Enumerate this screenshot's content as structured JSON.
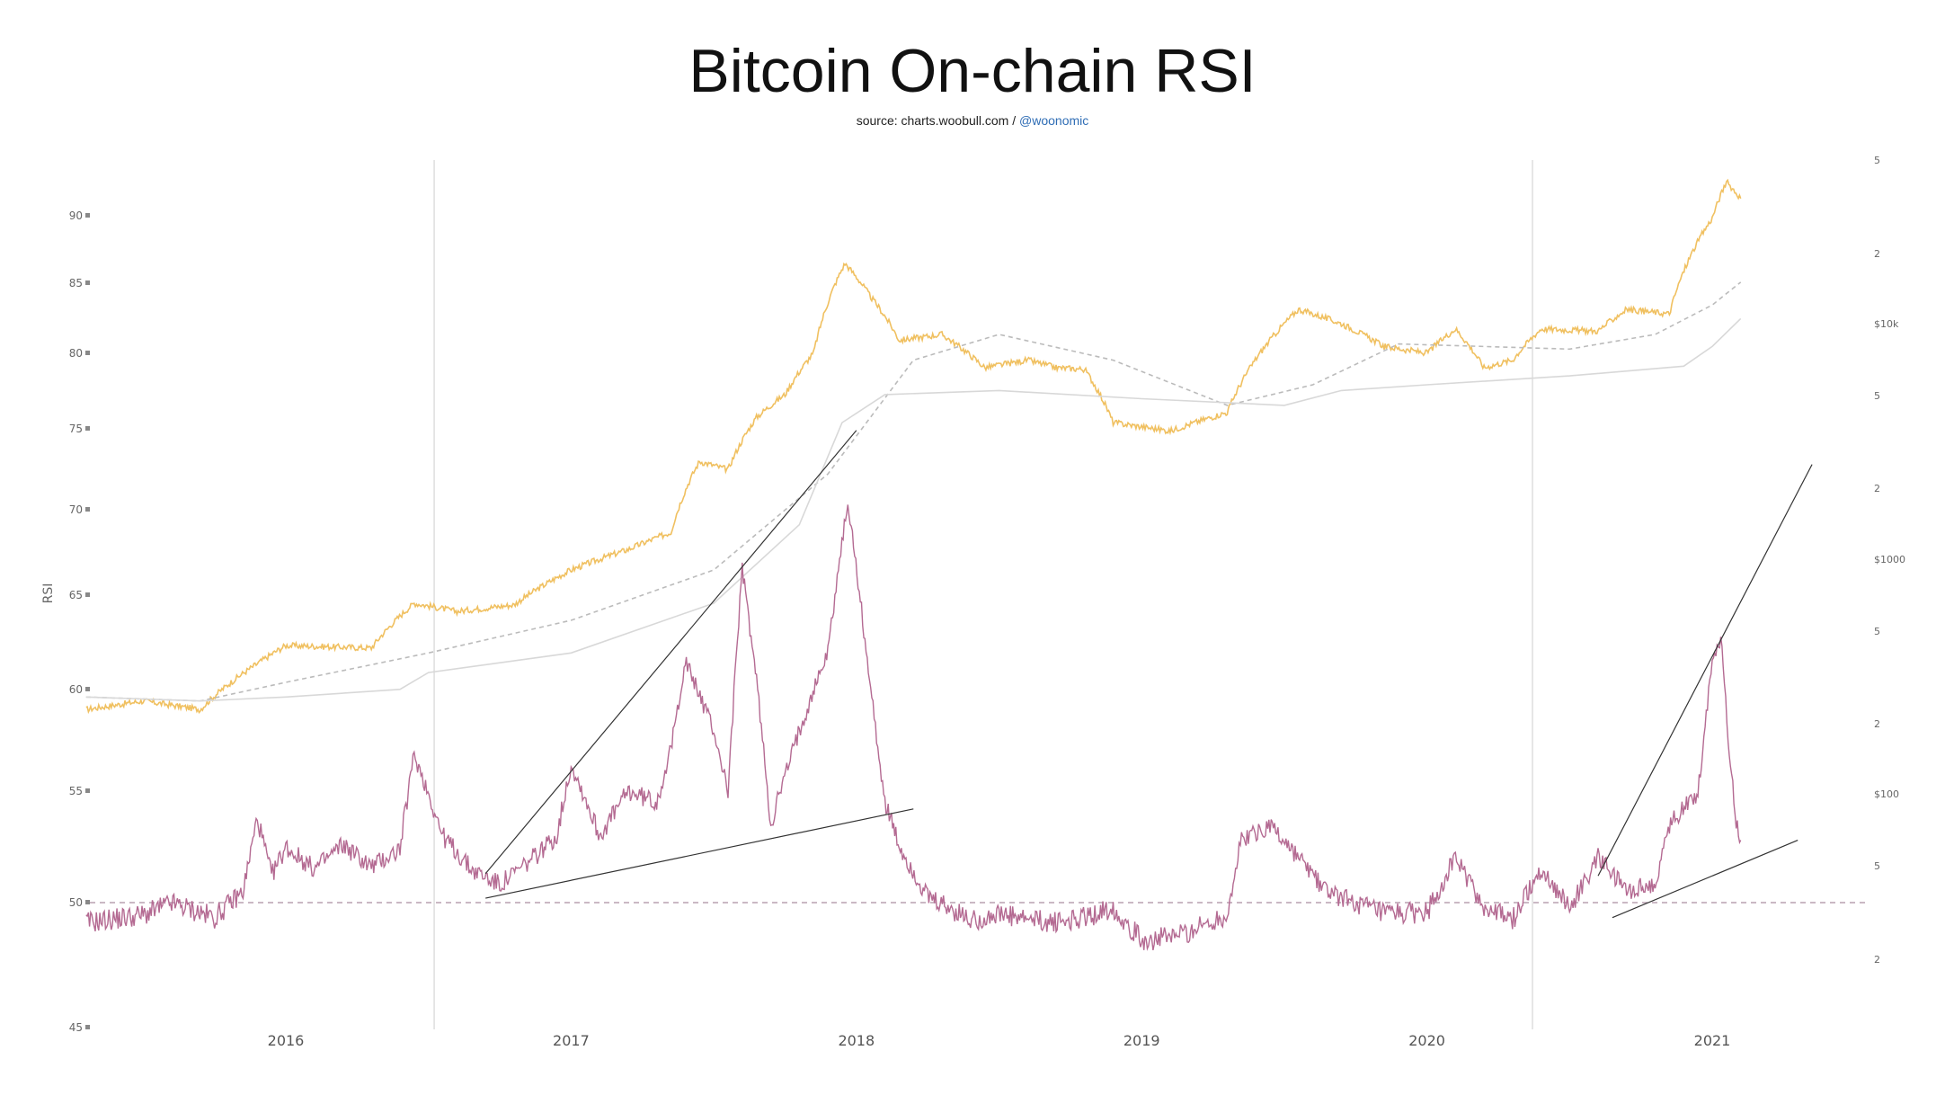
{
  "chart_data": {
    "type": "line",
    "title": "Bitcoin On-chain RSI",
    "subtitle": {
      "prefix": "source: charts.woobull.com / ",
      "handle": "@woonomic"
    },
    "ylabel": "RSI",
    "ylim": [
      45,
      92
    ],
    "left_ticks": [
      {
        "value": 90,
        "label": "90"
      },
      {
        "value": 85,
        "label": "85"
      },
      {
        "value": 80,
        "label": "80"
      },
      {
        "value": 75,
        "label": "75"
      },
      {
        "value": 70,
        "label": "70"
      },
      {
        "value": 65,
        "label": "65"
      },
      {
        "value": 60,
        "label": "60"
      },
      {
        "value": 55,
        "label": "55"
      },
      {
        "value": 50,
        "label": "50"
      },
      {
        "value": 45,
        "label": "45"
      }
    ],
    "x_ticks": [
      "2016",
      "2017",
      "2018",
      "2019",
      "2020",
      "2021"
    ],
    "right_scale": "log",
    "right_ticks": [
      "5",
      "2",
      "$10k",
      "5",
      "2",
      "$1000",
      "5",
      "2",
      "$100",
      "5",
      "2"
    ],
    "reference_line": {
      "value": 50,
      "style": "dashed"
    },
    "halving_lines": [
      "2016-07",
      "2020-05"
    ],
    "series": [
      {
        "key": "price",
        "color": "#f0c060",
        "points": [
          [
            2015.3,
            230
          ],
          [
            2015.5,
            250
          ],
          [
            2015.7,
            230
          ],
          [
            2015.9,
            360
          ],
          [
            2016.0,
            430
          ],
          [
            2016.3,
            420
          ],
          [
            2016.45,
            650
          ],
          [
            2016.6,
            600
          ],
          [
            2016.8,
            640
          ],
          [
            2017.0,
            900
          ],
          [
            2017.2,
            1100
          ],
          [
            2017.35,
            1300
          ],
          [
            2017.45,
            2600
          ],
          [
            2017.55,
            2400
          ],
          [
            2017.65,
            4000
          ],
          [
            2017.75,
            5000
          ],
          [
            2017.85,
            7500
          ],
          [
            2017.96,
            18000
          ],
          [
            2018.05,
            13000
          ],
          [
            2018.15,
            8500
          ],
          [
            2018.3,
            9000
          ],
          [
            2018.45,
            6500
          ],
          [
            2018.6,
            7000
          ],
          [
            2018.7,
            6500
          ],
          [
            2018.8,
            6400
          ],
          [
            2018.9,
            3800
          ],
          [
            2019.1,
            3500
          ],
          [
            2019.3,
            4200
          ],
          [
            2019.45,
            8500
          ],
          [
            2019.55,
            11500
          ],
          [
            2019.7,
            10000
          ],
          [
            2019.85,
            8000
          ],
          [
            2020.0,
            7500
          ],
          [
            2020.1,
            9500
          ],
          [
            2020.2,
            6500
          ],
          [
            2020.3,
            7000
          ],
          [
            2020.4,
            9500
          ],
          [
            2020.6,
            9300
          ],
          [
            2020.7,
            11500
          ],
          [
            2020.85,
            11000
          ],
          [
            2021.0,
            28000
          ],
          [
            2021.05,
            40000
          ],
          [
            2021.1,
            34000
          ]
        ]
      },
      {
        "key": "ma-dashed",
        "color": "#bbbbbb",
        "dashed": true,
        "points": [
          [
            2015.3,
            260
          ],
          [
            2015.7,
            250
          ],
          [
            2016.0,
            300
          ],
          [
            2016.5,
            400
          ],
          [
            2017.0,
            550
          ],
          [
            2017.5,
            900
          ],
          [
            2017.9,
            2300
          ],
          [
            2018.2,
            7000
          ],
          [
            2018.5,
            9000
          ],
          [
            2018.9,
            7000
          ],
          [
            2019.3,
            4500
          ],
          [
            2019.6,
            5500
          ],
          [
            2019.9,
            8200
          ],
          [
            2020.2,
            8000
          ],
          [
            2020.5,
            7800
          ],
          [
            2020.8,
            9000
          ],
          [
            2021.0,
            12000
          ],
          [
            2021.1,
            15000
          ]
        ]
      },
      {
        "key": "ma-solid",
        "color": "#d8d8d8",
        "dashed": false,
        "points": [
          [
            2015.3,
            260
          ],
          [
            2015.7,
            250
          ],
          [
            2016.0,
            260
          ],
          [
            2016.4,
            280
          ],
          [
            2016.5,
            330
          ],
          [
            2017.0,
            400
          ],
          [
            2017.5,
            650
          ],
          [
            2017.8,
            1400
          ],
          [
            2017.95,
            3800
          ],
          [
            2018.1,
            5000
          ],
          [
            2018.5,
            5200
          ],
          [
            2019.0,
            4800
          ],
          [
            2019.5,
            4500
          ],
          [
            2019.7,
            5200
          ],
          [
            2020.0,
            5500
          ],
          [
            2020.5,
            6000
          ],
          [
            2020.9,
            6600
          ],
          [
            2021.0,
            8000
          ],
          [
            2021.1,
            10500
          ]
        ]
      },
      {
        "key": "rsi",
        "color": "#b46a92",
        "points": [
          [
            2015.3,
            49.2
          ],
          [
            2015.5,
            49.5
          ],
          [
            2015.6,
            50.0
          ],
          [
            2015.75,
            49.4
          ],
          [
            2015.85,
            50.5
          ],
          [
            2015.9,
            53.8
          ],
          [
            2015.95,
            51.2
          ],
          [
            2016.0,
            52.5
          ],
          [
            2016.1,
            51.5
          ],
          [
            2016.2,
            52.6
          ],
          [
            2016.3,
            51.6
          ],
          [
            2016.4,
            52.4
          ],
          [
            2016.45,
            56.8
          ],
          [
            2016.55,
            53.0
          ],
          [
            2016.65,
            51.5
          ],
          [
            2016.75,
            50.8
          ],
          [
            2016.85,
            51.8
          ],
          [
            2016.95,
            53.0
          ],
          [
            2017.0,
            56.3
          ],
          [
            2017.1,
            53.0
          ],
          [
            2017.2,
            55.0
          ],
          [
            2017.3,
            54.5
          ],
          [
            2017.35,
            57.0
          ],
          [
            2017.4,
            61.5
          ],
          [
            2017.5,
            58.0
          ],
          [
            2017.55,
            55.0
          ],
          [
            2017.6,
            66.5
          ],
          [
            2017.65,
            60.5
          ],
          [
            2017.7,
            53.5
          ],
          [
            2017.8,
            58.0
          ],
          [
            2017.9,
            62.0
          ],
          [
            2017.97,
            70.5
          ],
          [
            2018.05,
            60.0
          ],
          [
            2018.1,
            54.5
          ],
          [
            2018.15,
            52.5
          ],
          [
            2018.25,
            50.2
          ],
          [
            2018.4,
            49.3
          ],
          [
            2018.5,
            49.5
          ],
          [
            2018.6,
            49.3
          ],
          [
            2018.7,
            49.2
          ],
          [
            2018.8,
            49.4
          ],
          [
            2018.9,
            49.8
          ],
          [
            2019.0,
            48.5
          ],
          [
            2019.1,
            48.6
          ],
          [
            2019.2,
            49.0
          ],
          [
            2019.3,
            49.5
          ],
          [
            2019.35,
            52.8
          ],
          [
            2019.45,
            53.5
          ],
          [
            2019.55,
            52.0
          ],
          [
            2019.65,
            50.5
          ],
          [
            2019.75,
            50.0
          ],
          [
            2019.85,
            49.5
          ],
          [
            2020.0,
            49.6
          ],
          [
            2020.1,
            52.0
          ],
          [
            2020.2,
            49.8
          ],
          [
            2020.3,
            49.3
          ],
          [
            2020.4,
            51.5
          ],
          [
            2020.5,
            49.8
          ],
          [
            2020.6,
            52.0
          ],
          [
            2020.7,
            50.5
          ],
          [
            2020.8,
            50.8
          ],
          [
            2020.85,
            53.5
          ],
          [
            2020.95,
            55.0
          ],
          [
            2021.0,
            61.5
          ],
          [
            2021.03,
            62.8
          ],
          [
            2021.06,
            57.0
          ],
          [
            2021.08,
            54.0
          ],
          [
            2021.1,
            52.8
          ]
        ]
      }
    ],
    "trendlines": [
      {
        "from": [
          2016.7,
          51.3
        ],
        "to": [
          2018.0,
          74.9
        ]
      },
      {
        "from": [
          2016.7,
          50.2
        ],
        "to": [
          2018.2,
          54.2
        ]
      },
      {
        "from": [
          2020.6,
          51.2
        ],
        "to": [
          2021.35,
          72.8
        ]
      },
      {
        "from": [
          2020.65,
          49.4
        ],
        "to": [
          2021.3,
          52.8
        ]
      }
    ]
  }
}
